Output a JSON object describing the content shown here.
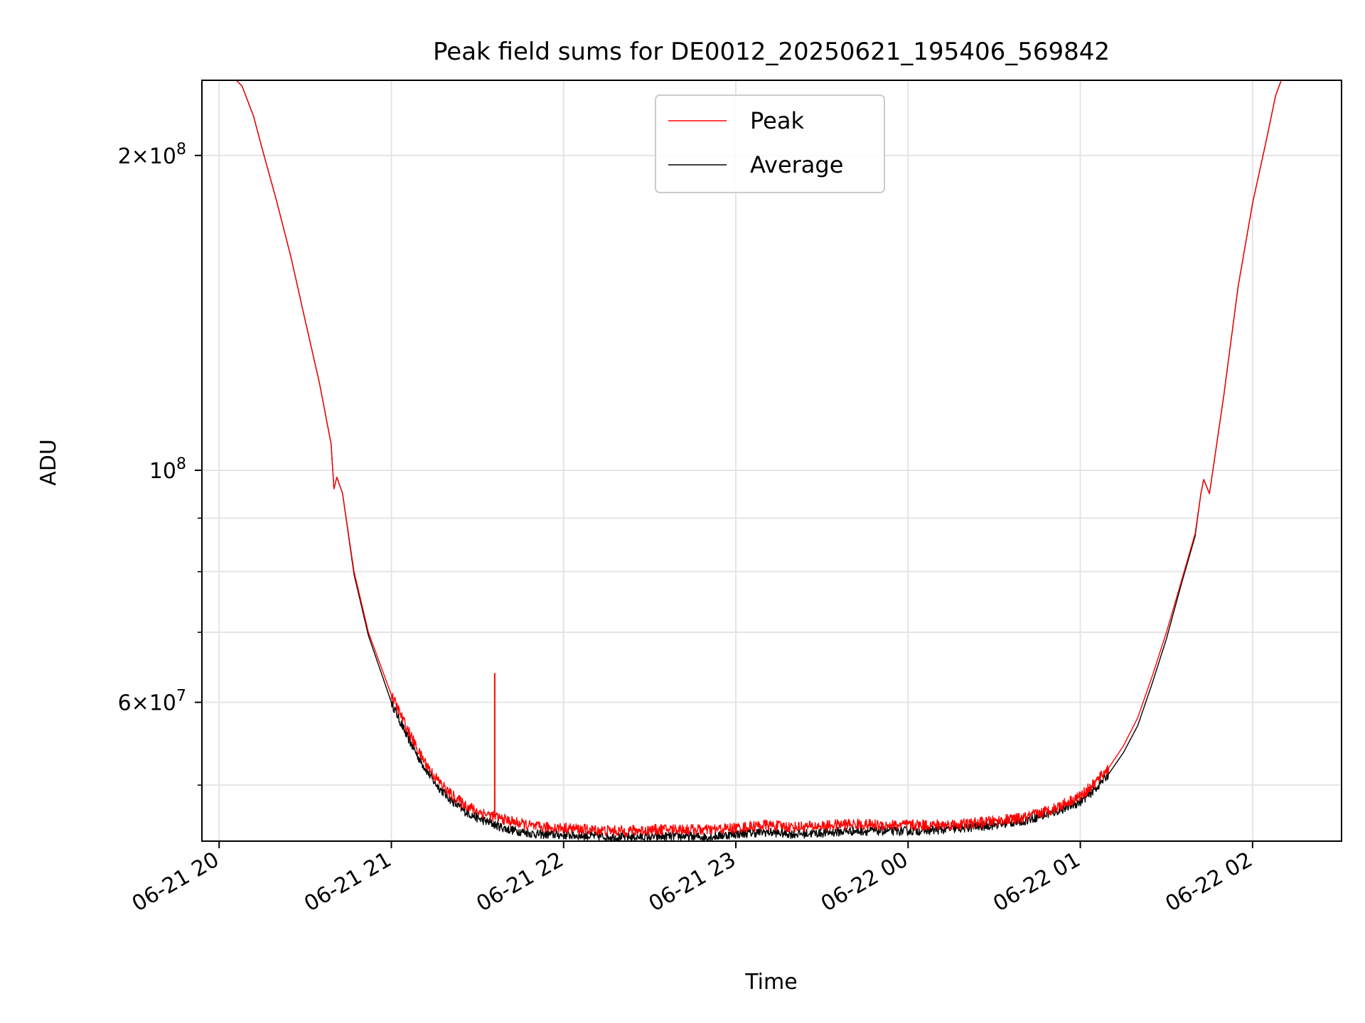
{
  "chart_data": {
    "type": "line",
    "title": "Peak field sums for DE0012_20250621_195406_569842",
    "xlabel": "Time",
    "ylabel": "ADU",
    "yscale": "log",
    "ylim": [
      44200000,
      236000000
    ],
    "xlim": [
      "2025-06-21T19:54",
      "2025-06-22T02:31"
    ],
    "grid": true,
    "legend_position": "upper center",
    "x_ticks": [
      {
        "time": "2025-06-21T20:00",
        "label": "06-21 20"
      },
      {
        "time": "2025-06-21T21:00",
        "label": "06-21 21"
      },
      {
        "time": "2025-06-21T22:00",
        "label": "06-21 22"
      },
      {
        "time": "2025-06-21T23:00",
        "label": "06-21 23"
      },
      {
        "time": "2025-06-22T00:00",
        "label": "06-22 00"
      },
      {
        "time": "2025-06-22T01:00",
        "label": "06-22 01"
      },
      {
        "time": "2025-06-22T02:00",
        "label": "06-22 02"
      }
    ],
    "y_ticks_labeled": [
      {
        "value": 60000000,
        "mantissa": "6",
        "exp": "7"
      },
      {
        "value": 100000000,
        "mantissa": "",
        "exp": "8"
      },
      {
        "value": 200000000,
        "mantissa": "2",
        "exp": "8"
      }
    ],
    "y_minor_ticks": [
      50000000,
      70000000,
      80000000,
      90000000
    ],
    "times_in_order": [
      "2025-06-21T20:06",
      "2025-06-21T20:08",
      "2025-06-21T20:12",
      "2025-06-21T20:15",
      "2025-06-21T20:20",
      "2025-06-21T20:25",
      "2025-06-21T20:30",
      "2025-06-21T20:35",
      "2025-06-21T20:39",
      "2025-06-21T20:40",
      "2025-06-21T20:41",
      "2025-06-21T20:43",
      "2025-06-21T20:47",
      "2025-06-21T20:52",
      "2025-06-21T21:00",
      "2025-06-21T21:05",
      "2025-06-21T21:10",
      "2025-06-21T21:15",
      "2025-06-21T21:20",
      "2025-06-21T21:25",
      "2025-06-21T21:30",
      "2025-06-21T21:40",
      "2025-06-21T21:50",
      "2025-06-21T22:00",
      "2025-06-21T22:10",
      "2025-06-21T22:20",
      "2025-06-21T22:30",
      "2025-06-21T22:40",
      "2025-06-21T22:50",
      "2025-06-21T23:00",
      "2025-06-21T23:10",
      "2025-06-21T23:20",
      "2025-06-21T23:30",
      "2025-06-21T23:40",
      "2025-06-21T23:50",
      "2025-06-22T00:00",
      "2025-06-22T00:10",
      "2025-06-22T00:20",
      "2025-06-22T00:30",
      "2025-06-22T00:40",
      "2025-06-22T00:50",
      "2025-06-22T01:00",
      "2025-06-22T01:05",
      "2025-06-22T01:10",
      "2025-06-22T01:15",
      "2025-06-22T01:20",
      "2025-06-22T01:25",
      "2025-06-22T01:30",
      "2025-06-22T01:35",
      "2025-06-22T01:40",
      "2025-06-22T01:42",
      "2025-06-22T01:43",
      "2025-06-22T01:45",
      "2025-06-22T01:50",
      "2025-06-22T01:55",
      "2025-06-22T02:00",
      "2025-06-22T02:05",
      "2025-06-22T02:08",
      "2025-06-22T02:10"
    ],
    "series": [
      {
        "name": "Peak",
        "color": "#ff0000",
        "noise_start": "2025-06-21T21:00",
        "noise_end": "2025-06-22T01:10",
        "spike": {
          "time": "2025-06-21T21:36",
          "value": 64000000,
          "base": 47000000
        },
        "values": [
          236000000,
          233000000,
          218000000,
          203000000,
          181000000,
          160000000,
          139000000,
          121000000,
          106000000,
          96000000,
          98500000,
          95000000,
          80000000,
          70000000,
          61000000,
          57000000,
          53500000,
          51000000,
          49200000,
          48000000,
          47200000,
          46300000,
          45600000,
          45500000,
          45300000,
          45200000,
          45300000,
          45400000,
          45300000,
          45500000,
          45800000,
          45600000,
          45700000,
          45900000,
          45800000,
          45800000,
          45800000,
          45900000,
          46200000,
          46500000,
          47400000,
          48800000,
          50200000,
          52000000,
          54500000,
          58000000,
          63500000,
          70000000,
          78000000,
          87000000,
          95000000,
          98000000,
          95000000,
          118000000,
          150000000,
          180000000,
          208000000,
          228000000,
          236000000
        ]
      },
      {
        "name": "Average",
        "color": "#000000",
        "noise_start": "2025-06-21T21:00",
        "noise_end": "2025-06-22T01:10",
        "values": [
          236000000,
          233000000,
          218000000,
          203000000,
          181000000,
          160000000,
          139000000,
          121000000,
          106000000,
          96000000,
          98500000,
          95000000,
          79500000,
          69500000,
          60000000,
          56000000,
          52800000,
          50300000,
          48600000,
          47300000,
          46500000,
          45400000,
          44900000,
          44800000,
          44700000,
          44600000,
          44600000,
          44700000,
          44600000,
          44900000,
          45100000,
          44900000,
          45000000,
          45200000,
          45200000,
          45200000,
          45300000,
          45500000,
          45800000,
          46200000,
          47000000,
          48200000,
          49500000,
          51300000,
          53700000,
          57000000,
          62500000,
          69000000,
          77500000,
          86500000,
          95000000,
          98000000,
          95000000,
          118000000,
          150000000,
          180000000,
          208000000,
          228000000,
          236000000
        ]
      }
    ]
  }
}
